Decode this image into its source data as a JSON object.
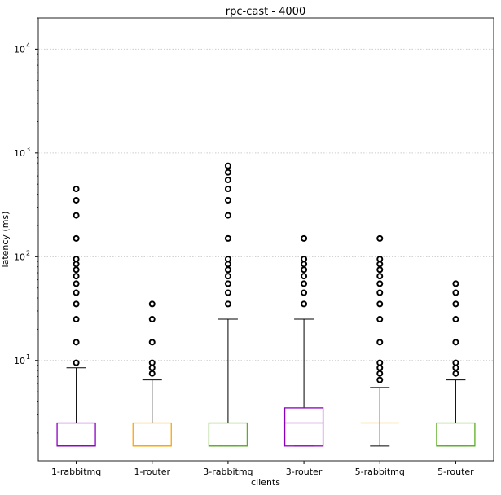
{
  "chart_data": {
    "type": "box",
    "title": "rpc-cast - 4000",
    "xlabel": "clients",
    "ylabel": "latency (ms)",
    "yscale": "log",
    "ylim": [
      1.08,
      20000
    ],
    "yticks": [
      {
        "value": 10,
        "label": "10",
        "exp": "1"
      },
      {
        "value": 100,
        "label": "10",
        "exp": "2"
      },
      {
        "value": 1000,
        "label": "10",
        "exp": "3"
      },
      {
        "value": 10000,
        "label": "10",
        "exp": "4"
      }
    ],
    "grid": "y-major-dotted",
    "categories": [
      "1-rabbitmq",
      "1-router",
      "3-rabbitmq",
      "3-router",
      "5-rabbitmq",
      "5-router"
    ],
    "series": [
      {
        "name": "1-rabbitmq",
        "color": "#8b00c0",
        "whislo": 1.5,
        "q1": 1.5,
        "median": 1.5,
        "q3": 2.5,
        "whishi": 8.5,
        "fliers": [
          9.5,
          15,
          25,
          35,
          45,
          55,
          65,
          75,
          85,
          95,
          150,
          250,
          350,
          450
        ]
      },
      {
        "name": "1-router",
        "color": "#ffa500",
        "whislo": 1.5,
        "q1": 1.5,
        "median": 1.5,
        "q3": 2.5,
        "whishi": 6.5,
        "fliers": [
          7.5,
          8.5,
          9.5,
          15,
          25,
          35
        ]
      },
      {
        "name": "3-rabbitmq",
        "color": "#5aae23",
        "whislo": 1.5,
        "q1": 1.5,
        "median": 1.5,
        "q3": 2.5,
        "whishi": 25,
        "fliers": [
          35,
          45,
          55,
          65,
          75,
          85,
          95,
          150,
          250,
          350,
          450,
          550,
          650,
          750
        ]
      },
      {
        "name": "3-router",
        "color": "#8b00c0",
        "whislo": 1.5,
        "q1": 1.5,
        "median": 2.5,
        "q3": 3.5,
        "whishi": 25,
        "fliers": [
          35,
          45,
          55,
          65,
          75,
          85,
          95,
          150
        ]
      },
      {
        "name": "5-rabbitmq",
        "color": "#ffa500",
        "whislo": 1.5,
        "q1": 2.5,
        "median": 2.5,
        "q3": 2.5,
        "whishi": 5.5,
        "fliers": [
          6.5,
          7.5,
          8.5,
          9.5,
          15,
          25,
          35,
          45,
          55,
          65,
          75,
          85,
          95,
          150
        ]
      },
      {
        "name": "5-router",
        "color": "#5aae23",
        "whislo": 1.5,
        "q1": 1.5,
        "median": 1.5,
        "q3": 2.5,
        "whishi": 6.5,
        "fliers": [
          7.5,
          8.5,
          9.5,
          15,
          25,
          35,
          45,
          55
        ]
      }
    ]
  }
}
